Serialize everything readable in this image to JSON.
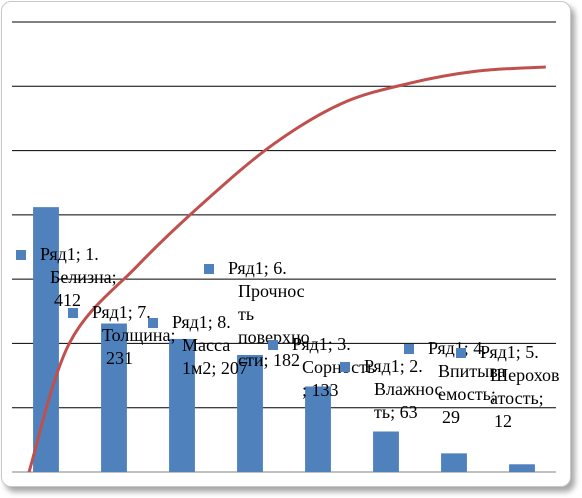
{
  "chart_data": {
    "type": "bar",
    "categories": [
      "1. Белизна",
      "7. Толщина",
      "8. Масса 1м2",
      "6. Прочность поверхности",
      "3. Сорность",
      "2. Влажность",
      "4. Впитываемость",
      "5. Шероховатость"
    ],
    "series": [
      {
        "name": "Ряд1",
        "values": [
          412,
          231,
          207,
          182,
          133,
          63,
          29,
          12
        ],
        "color": "#4f81bd"
      }
    ],
    "cumulative_line": {
      "color": "#c0504d",
      "values": [
        0.32,
        0.51,
        0.67,
        0.81,
        0.91,
        0.96,
        0.99,
        1.0
      ]
    },
    "data_labels": [
      [
        "Ряд1; 1.",
        "Белизна;",
        "412"
      ],
      [
        "Ряд1; 7.",
        "Толщина;",
        "231"
      ],
      [
        "Ряд1; 8.",
        "Масса",
        "1м2; 207"
      ],
      [
        "Ряд1; 6.",
        "Прочнос",
        "ть",
        "поверхно",
        "сти; 182"
      ],
      [
        "Ряд1; 3.",
        "Сорность",
        "; 133"
      ],
      [
        "Ряд1; 2.",
        "Влажнос",
        "ть; 63"
      ],
      [
        "Ряд1; 4.",
        "Впитыва",
        "емость;",
        "29"
      ],
      [
        "Ряд1; 5.",
        "Шерохов",
        "атость;",
        "12"
      ]
    ],
    "ylim": [
      0,
      700
    ],
    "grid": true,
    "title": "",
    "xlabel": "",
    "ylabel": ""
  }
}
